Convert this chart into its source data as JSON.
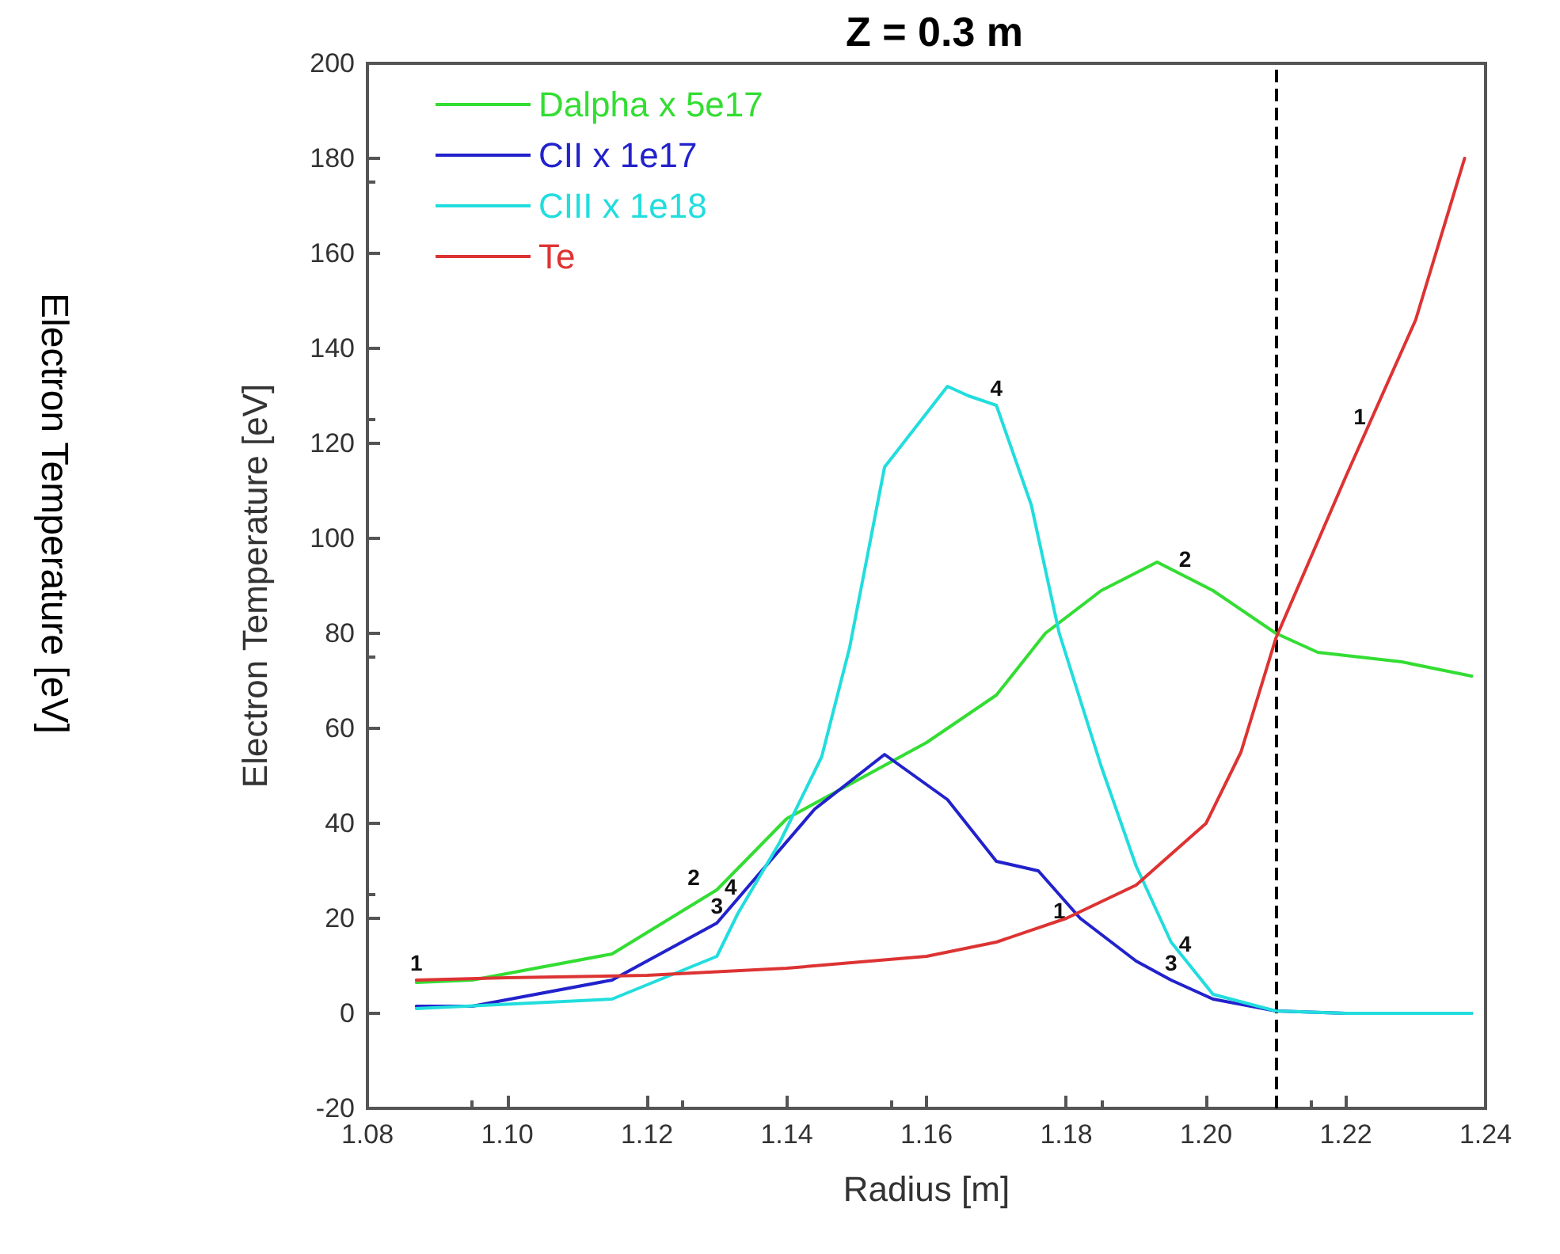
{
  "chart_data": {
    "type": "line",
    "title": "Z = 0.3 m",
    "xlabel": "Radius [m]",
    "ylabel": "Electron Temperature [eV]",
    "xlim": [
      1.08,
      1.24
    ],
    "xticks": [
      1.08,
      {
        "value": 1.1,
        "label": "1.10"
      },
      1.12,
      1.14,
      1.16,
      1.18,
      {
        "value": 1.2,
        "label": "1.20"
      },
      1.22,
      1.24
    ],
    "ylim": [
      -20,
      200
    ],
    "yticks": [
      -20,
      0,
      20,
      40,
      60,
      80,
      100,
      120,
      140,
      160,
      180,
      200
    ],
    "grid": false,
    "legend": "top left",
    "marker": "none",
    "line_style": "solid",
    "series": [
      {
        "name": "Dalpha x 5e17",
        "color": "#33dd33",
        "x": [
          1.087,
          1.095,
          1.115,
          1.13,
          1.14,
          1.155,
          1.16,
          1.17,
          1.177,
          1.185,
          1.193,
          1.201,
          1.21,
          1.216,
          1.228,
          1.238
        ],
        "values": [
          6.5,
          7,
          12.5,
          26,
          41,
          53,
          57,
          67,
          80,
          89,
          95,
          89,
          80,
          76,
          74,
          71
        ]
      },
      {
        "name": "CII x 1e17",
        "color": "#2222cc",
        "x": [
          1.087,
          1.095,
          1.115,
          1.13,
          1.144,
          1.154,
          1.163,
          1.17,
          1.176,
          1.182,
          1.19,
          1.195,
          1.201,
          1.21,
          1.22,
          1.238
        ],
        "values": [
          1.5,
          1.5,
          7,
          19,
          43,
          54.5,
          45,
          32,
          30,
          20,
          11,
          7,
          3,
          0.5,
          0,
          0
        ]
      },
      {
        "name": "CIII x 1e18",
        "color": "#22dddd",
        "x": [
          1.087,
          1.115,
          1.13,
          1.133,
          1.139,
          1.145,
          1.149,
          1.154,
          1.163,
          1.166,
          1.17,
          1.175,
          1.179,
          1.185,
          1.19,
          1.195,
          1.201,
          1.21,
          1.22,
          1.238
        ],
        "values": [
          1,
          3,
          12,
          21,
          36,
          54,
          77,
          115,
          132,
          130,
          128,
          107,
          80,
          52,
          31,
          15,
          4,
          0.5,
          0,
          0
        ]
      },
      {
        "name": "Te",
        "color": "#dd3333",
        "x": [
          1.087,
          1.1,
          1.12,
          1.14,
          1.16,
          1.17,
          1.18,
          1.19,
          1.2,
          1.205,
          1.21,
          1.22,
          1.23,
          1.237
        ],
        "values": [
          7,
          7.5,
          8,
          9.5,
          12,
          15,
          20,
          27,
          40,
          55,
          79,
          113,
          146,
          180
        ]
      }
    ],
    "ref_lines": [
      {
        "axis": "x",
        "value": 1.21,
        "color": "#000000",
        "line_style": "dashed"
      }
    ],
    "annotations": [
      "Electron Temperature [eV]",
      {
        "text": "1",
        "x": 1.087,
        "y": 7
      },
      {
        "text": "2",
        "x": 1.1267,
        "y": 25
      },
      {
        "text": "3",
        "x": 1.13,
        "y": 19
      },
      {
        "text": "4",
        "x": 1.132,
        "y": 23
      },
      {
        "text": "4",
        "x": 1.17,
        "y": 128
      },
      {
        "text": "2",
        "x": 1.197,
        "y": 92
      },
      {
        "text": "1",
        "x": 1.222,
        "y": 122
      },
      {
        "text": "1",
        "x": 1.179,
        "y": 18
      },
      {
        "text": "3",
        "x": 1.195,
        "y": 7
      },
      {
        "text": "4",
        "x": 1.197,
        "y": 11
      }
    ]
  }
}
